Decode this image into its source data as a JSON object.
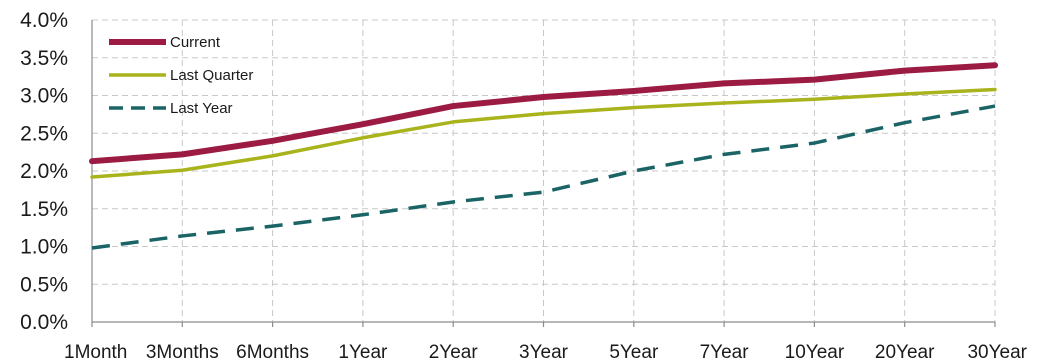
{
  "chart_data": {
    "type": "line",
    "categories": [
      "1Month",
      "3Months",
      "6Months",
      "1Year",
      "2Year",
      "3Year",
      "5Year",
      "7Year",
      "10Year",
      "20Year",
      "30Year"
    ],
    "y_tick_labels": [
      "0.0%",
      "0.5%",
      "1.0%",
      "1.5%",
      "2.0%",
      "2.5%",
      "3.0%",
      "3.5%",
      "4.0%"
    ],
    "ylim": [
      0,
      4.0
    ],
    "y_unit": "%",
    "grid": true,
    "legend_position": "top-left",
    "series": [
      {
        "name": "Current",
        "color": "#9b1b42",
        "style": "solid",
        "values": [
          2.13,
          2.22,
          2.4,
          2.62,
          2.86,
          2.98,
          3.06,
          3.16,
          3.21,
          3.33,
          3.4
        ]
      },
      {
        "name": "Last Quarter",
        "color": "#a9b31c",
        "style": "solid",
        "values": [
          1.92,
          2.01,
          2.2,
          2.44,
          2.65,
          2.76,
          2.84,
          2.9,
          2.95,
          3.02,
          3.08
        ]
      },
      {
        "name": "Last Year",
        "color": "#1b6466",
        "style": "dashed",
        "values": [
          0.98,
          1.14,
          1.27,
          1.42,
          1.59,
          1.72,
          2.0,
          2.22,
          2.37,
          2.64,
          2.86
        ]
      }
    ]
  }
}
